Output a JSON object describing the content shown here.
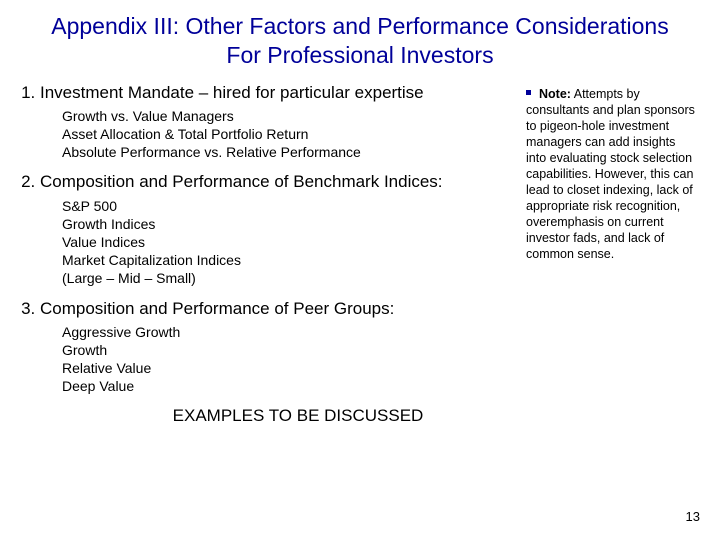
{
  "title": "Appendix III: Other Factors and Performance Considerations For Professional Investors",
  "items": [
    {
      "head": "Investment Mandate – hired for particular expertise",
      "subs": [
        "Growth vs. Value Managers",
        "Asset Allocation & Total Portfolio Return",
        "Absolute Performance vs. Relative Performance"
      ]
    },
    {
      "head": "Composition and Performance of Benchmark Indices:",
      "subs": [
        "S&P 500",
        "Growth Indices",
        "Value Indices",
        "Market Capitalization Indices"
      ],
      "subsub": "(Large – Mid – Small)"
    },
    {
      "head": "Composition and Performance of Peer Groups:",
      "subs": [
        "Aggressive Growth",
        "Growth",
        "Relative Value",
        "Deep Value"
      ]
    }
  ],
  "note_label": "Note:",
  "note_body": " Attempts by consultants and plan sponsors to pigeon-hole investment managers can add insights into evaluating stock selection capabilities. However, this can lead to closet indexing, lack of appropriate risk recognition, overemphasis on current investor fads, and lack of common sense.",
  "footer": "EXAMPLES TO BE DISCUSSED",
  "page_number": "13",
  "colors": {
    "title": "#000099",
    "text": "#000000",
    "bullet": "#000099",
    "background": "#ffffff"
  },
  "typography": {
    "title_fontsize": 23,
    "body_fontsize": 17,
    "sub_fontsize": 14,
    "note_fontsize": 12.5,
    "footer_fontsize": 17,
    "pagenum_fontsize": 13,
    "font_family": "Verdana"
  }
}
